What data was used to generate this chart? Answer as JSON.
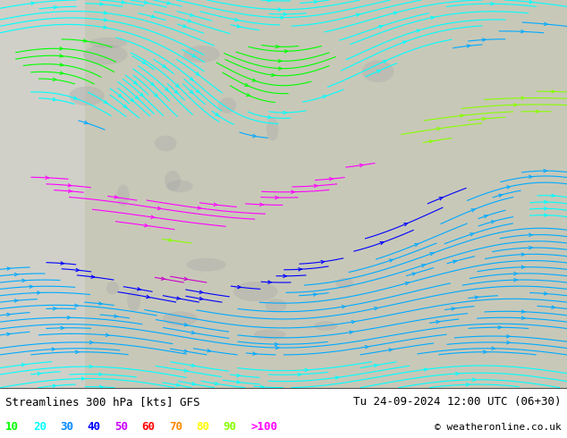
{
  "title_left": "Streamlines 300 hPa [kts] GFS",
  "title_right": "Tu 24-09-2024 12:00 UTC (06+30)",
  "copyright": "© weatheronline.co.uk",
  "legend_values": [
    "10",
    "20",
    "30",
    "40",
    "50",
    "60",
    "70",
    "80",
    "90",
    ">100"
  ],
  "legend_colors": [
    "#00ff00",
    "#00ffff",
    "#0099ff",
    "#0000ff",
    "#ff00ff",
    "#ff0000",
    "#ff9900",
    "#ffff00",
    "#99ff00",
    "#ff00ff"
  ],
  "background_color": "#ffffff",
  "map_bg": "#d3d3d3",
  "bottom_bar_color": "#000000",
  "font_color": "#000000",
  "figsize": [
    6.34,
    4.9
  ],
  "dpi": 100
}
